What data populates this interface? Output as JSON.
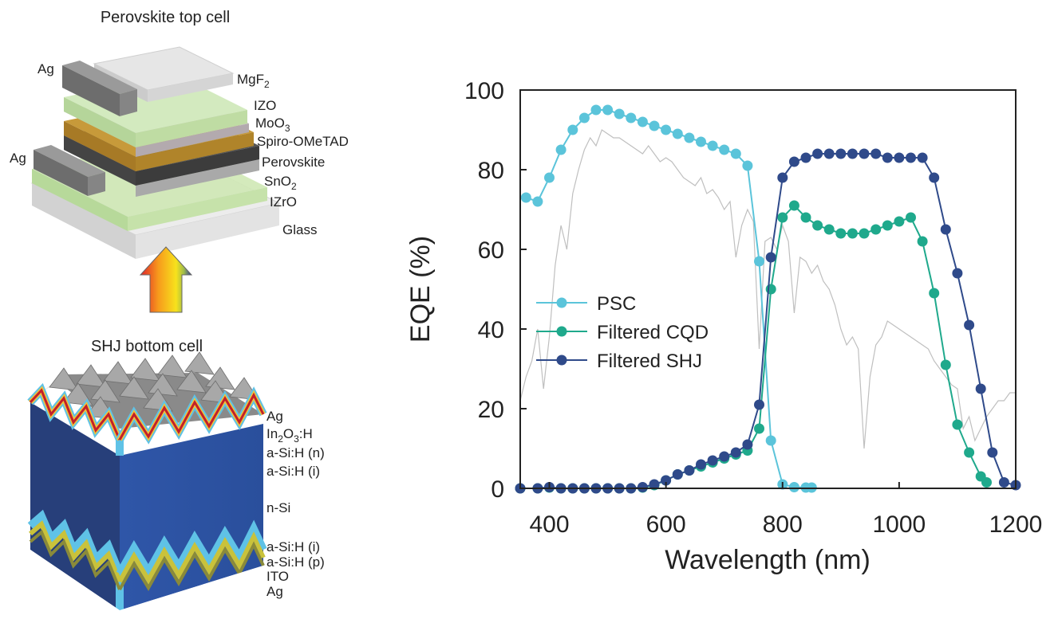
{
  "figure": {
    "top_cell": {
      "title": "Perovskite top cell",
      "labels": [
        {
          "text": "MgF",
          "sub": "2",
          "tail": ""
        },
        {
          "text": "IZO",
          "sub": "",
          "tail": ""
        },
        {
          "text": "MoO",
          "sub": "3",
          "tail": ""
        },
        {
          "text": "Spiro-OMeTAD",
          "sub": "",
          "tail": ""
        },
        {
          "text": "Perovskite",
          "sub": "",
          "tail": ""
        },
        {
          "text": "SnO",
          "sub": "2",
          "tail": ""
        },
        {
          "text": "IZrO",
          "sub": "",
          "tail": ""
        },
        {
          "text": "Glass",
          "sub": "",
          "tail": ""
        }
      ],
      "contact_upper": "Ag",
      "contact_lower": "Ag"
    },
    "bottom_cell": {
      "title": "SHJ bottom cell",
      "labels_top": [
        {
          "parts": [
            [
              "Ag",
              ""
            ]
          ]
        },
        {
          "parts": [
            [
              "In",
              "2"
            ],
            [
              "O",
              "3"
            ],
            [
              ":H",
              ""
            ]
          ]
        },
        {
          "parts": [
            [
              "a-Si:H (n)",
              ""
            ]
          ]
        },
        {
          "parts": [
            [
              "a-Si:H (i)",
              ""
            ]
          ]
        }
      ],
      "label_mid": "n-Si",
      "labels_bottom": [
        "a-Si:H (i)",
        "a-Si:H (p)",
        "ITO",
        "Ag"
      ]
    }
  },
  "chart_data": {
    "type": "line",
    "xlabel": "Wavelength (nm)",
    "ylabel": "EQE (%)",
    "xlim": [
      350,
      1200
    ],
    "ylim": [
      0,
      100
    ],
    "xticks": [
      400,
      600,
      800,
      1000,
      1200
    ],
    "yticks": [
      0,
      20,
      40,
      60,
      80,
      100
    ],
    "legend_position": "center-left",
    "series": [
      {
        "name": "PSC",
        "color": "#5bc4da",
        "x": [
          360,
          380,
          400,
          420,
          440,
          460,
          480,
          500,
          520,
          540,
          560,
          580,
          600,
          620,
          640,
          660,
          680,
          700,
          720,
          740,
          760,
          780,
          800,
          820,
          840,
          850
        ],
        "y": [
          73,
          72,
          78,
          85,
          90,
          93,
          95,
          95,
          94,
          93,
          92,
          91,
          90,
          89,
          88,
          87,
          86,
          85,
          84,
          81,
          57,
          12,
          1,
          0.3,
          0.2,
          0.2
        ]
      },
      {
        "name": "Filtered CQD",
        "color": "#1fa98c",
        "x": [
          350,
          380,
          400,
          420,
          440,
          460,
          480,
          500,
          520,
          540,
          560,
          580,
          600,
          620,
          640,
          660,
          680,
          700,
          720,
          740,
          760,
          780,
          800,
          820,
          840,
          860,
          880,
          900,
          920,
          940,
          960,
          980,
          1000,
          1020,
          1040,
          1060,
          1080,
          1100,
          1120,
          1140,
          1150
        ],
        "y": [
          0,
          0,
          0.2,
          0,
          0,
          0,
          0,
          0,
          0,
          0,
          0.2,
          0.8,
          2,
          3.5,
          4.5,
          5.5,
          6.5,
          7.5,
          8.5,
          9.5,
          15,
          50,
          68,
          71,
          68,
          66,
          65,
          64,
          64,
          64,
          65,
          66,
          67,
          68,
          62,
          49,
          31,
          16,
          9,
          3,
          1.5
        ]
      },
      {
        "name": "Filtered SHJ",
        "color": "#2f4a8a",
        "x": [
          350,
          380,
          400,
          420,
          440,
          460,
          480,
          500,
          520,
          540,
          560,
          580,
          600,
          620,
          640,
          660,
          680,
          700,
          720,
          740,
          760,
          780,
          800,
          820,
          840,
          860,
          880,
          900,
          920,
          940,
          960,
          980,
          1000,
          1020,
          1040,
          1060,
          1080,
          1100,
          1120,
          1140,
          1160,
          1180,
          1200
        ],
        "y": [
          0,
          0,
          0.3,
          0,
          0,
          0,
          0,
          0,
          0,
          0,
          0.3,
          1,
          2,
          3.5,
          4.5,
          6,
          7,
          8,
          9,
          11,
          21,
          58,
          78,
          82,
          83,
          84,
          84,
          84,
          84,
          84,
          84,
          83,
          83,
          83,
          83,
          78,
          65,
          54,
          41,
          25,
          9,
          1.5,
          0.8
        ]
      }
    ],
    "background_spectrum": {
      "color": "#bfbfbf",
      "x": [
        350,
        360,
        370,
        380,
        390,
        400,
        410,
        420,
        430,
        440,
        450,
        460,
        470,
        480,
        490,
        500,
        510,
        520,
        530,
        540,
        550,
        560,
        570,
        580,
        590,
        600,
        610,
        620,
        630,
        640,
        650,
        660,
        670,
        680,
        690,
        700,
        710,
        720,
        730,
        740,
        750,
        760,
        770,
        780,
        790,
        800,
        810,
        820,
        830,
        840,
        850,
        860,
        870,
        880,
        890,
        900,
        910,
        920,
        930,
        940,
        950,
        960,
        970,
        980,
        990,
        1000,
        1010,
        1020,
        1030,
        1040,
        1050,
        1060,
        1070,
        1080,
        1090,
        1100,
        1110,
        1120,
        1130,
        1140,
        1150,
        1160,
        1170,
        1180,
        1190,
        1200
      ],
      "y": [
        22,
        28,
        32,
        40,
        25,
        38,
        56,
        66,
        60,
        74,
        80,
        85,
        88,
        86,
        90,
        89,
        88,
        88,
        87,
        86,
        85,
        84,
        86,
        84,
        82,
        83,
        82,
        80,
        78,
        77,
        76,
        78,
        74,
        75,
        73,
        70,
        72,
        58,
        66,
        70,
        67,
        35,
        62,
        63,
        60,
        66,
        62,
        44,
        58,
        57,
        54,
        56,
        52,
        50,
        46,
        40,
        36,
        38,
        35,
        10,
        28,
        36,
        38,
        42,
        41,
        40,
        39,
        38,
        37,
        36,
        35,
        32,
        30,
        28,
        26,
        25,
        15,
        18,
        12,
        15,
        18,
        20,
        22,
        22,
        24,
        24
      ]
    }
  }
}
